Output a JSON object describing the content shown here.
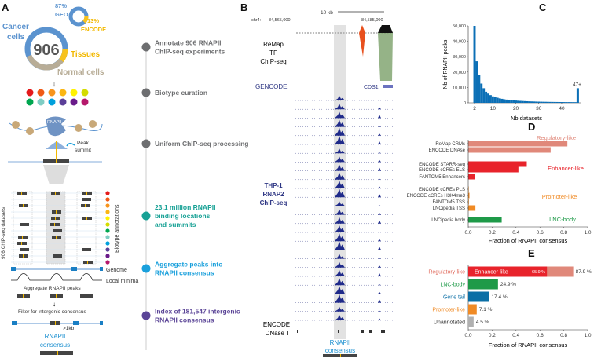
{
  "panels": {
    "a": "A",
    "b": "B",
    "c": "C",
    "d": "D",
    "e": "E"
  },
  "panel_a": {
    "donut_center": "906",
    "cancer": "Cancer",
    "cells": "cells",
    "tissues": "Tissues",
    "normal": "Normal cells",
    "geo_pct": "87%",
    "geo": "GEO",
    "encode_pct": "13%",
    "encode": "ENCODE",
    "rnapii": "RNAPII",
    "peak": "Peak",
    "summit": "summit",
    "datasets_label": "906 ChIP-seq datasets",
    "biotype_label": "Biotype annotations",
    "genome": "Genome",
    "local_minima": "Local minima",
    "aggregate": "Aggregate RNAPII peaks",
    "filter": "Filter for intergenic consensus",
    "gap": ">1kb",
    "consensus1": "RNAPII",
    "consensus2": "consensus",
    "biotype_colors": [
      "#e41a1c",
      "#f05a16",
      "#f7941d",
      "#fbb614",
      "#fff200",
      "#d4dc00",
      "#00a650",
      "#7fcdc4",
      "#00a0dc",
      "#5b3f98",
      "#6a1b8a",
      "#b5186b"
    ]
  },
  "timeline": [
    {
      "lines": [
        "Annotate 906 RNAPII",
        "ChIP-seq experiments"
      ],
      "color": "#6d6e70"
    },
    {
      "lines": [
        "Biotype curation"
      ],
      "color": "#6d6e70"
    },
    {
      "lines": [
        "Uniform ChIP-seq processing"
      ],
      "color": "#6d6e70"
    },
    {
      "lines": [
        "23.1 million RNAPII",
        "binding locations",
        "and summits"
      ],
      "color": "#17a195"
    },
    {
      "lines": [
        "Aggregate peaks into",
        "RNAPII consensus"
      ],
      "color": "#1aa0dc"
    },
    {
      "lines": [
        "Index of 181,547 intergenic",
        "RNAPII consensus"
      ],
      "color": "#5b4597"
    }
  ],
  "panel_b": {
    "scale": "10 kb",
    "chrom": "chr4:",
    "coord1": "84,565,000",
    "coord2": "84,585,000",
    "remap1": "ReMap",
    "remap2": "TF",
    "remap3": "ChIP-seq",
    "gencode": "GENCODE",
    "gene": "CDS1",
    "thp1_1": "THP-1",
    "thp1_2": "RNAP2",
    "thp1_3": "ChIP-seq",
    "dnase1": "ENCODE",
    "dnase2": "DNase I",
    "cons1": "RNAPII",
    "cons2": "consensus"
  },
  "chart_data": [
    {
      "id": "C",
      "type": "bar",
      "xlabel": "Nb datasets",
      "ylabel": "Nb of RNAPII peaks",
      "xticks": [
        2,
        10,
        20,
        30,
        40
      ],
      "yticks": [
        0,
        10000,
        20000,
        30000,
        40000,
        50000
      ],
      "ytick_labels": [
        "0",
        "10,000",
        "20,000",
        "30,000",
        "40,000",
        "50,000"
      ],
      "ylim": [
        0,
        50000
      ],
      "x": [
        2,
        3,
        4,
        5,
        6,
        7,
        8,
        9,
        10,
        11,
        12,
        13,
        14,
        15,
        16,
        17,
        18,
        19,
        20,
        21,
        22,
        23,
        24,
        25,
        26,
        27,
        28,
        29,
        30,
        31,
        32,
        33,
        34,
        35,
        36,
        37,
        38,
        39,
        40,
        41,
        42,
        43,
        44,
        45,
        46
      ],
      "values": [
        50000,
        27000,
        18000,
        12500,
        9500,
        7200,
        6000,
        5000,
        4200,
        3700,
        3300,
        2900,
        2600,
        2300,
        2100,
        1900,
        1750,
        1600,
        1480,
        1370,
        1270,
        1180,
        1100,
        1030,
        960,
        900,
        850,
        800,
        760,
        720,
        690,
        660,
        630,
        600,
        580,
        560,
        540,
        520,
        500,
        480,
        470,
        460,
        450,
        440,
        430
      ],
      "overflow": {
        "label": "47+",
        "value": 9500
      },
      "color": "#0b6fb6"
    },
    {
      "id": "D",
      "type": "bar",
      "orientation": "horizontal",
      "xlabel": "Fraction of RNAPII consensus",
      "xticks": [
        "0.0",
        "0.2",
        "0.4",
        "0.6",
        "0.8",
        "1.0"
      ],
      "xlim": [
        0,
        1
      ],
      "groups": [
        {
          "name": "Regulatory-like",
          "color": "#e0887a",
          "items": [
            {
              "label": "ReMap CRMs",
              "value": 0.83
            },
            {
              "label": "ENCODE DNAse",
              "value": 0.69
            }
          ]
        },
        {
          "name": "Enhancer-like",
          "color": "#e8232b",
          "items": [
            {
              "label": "ENCODE STARR-seq",
              "value": 0.49
            },
            {
              "label": "ENCODE cCREs ELS",
              "value": 0.42
            },
            {
              "label": "FANTOM5 Enhancers",
              "value": 0.055
            }
          ]
        },
        {
          "name": "Promoter-like",
          "color": "#f08a24",
          "items": [
            {
              "label": "ENCODE cCREs PLS",
              "value": 0.003
            },
            {
              "label": "ENCODE cCREs H3K4me3",
              "value": 0.01
            },
            {
              "label": "FANTOM5 TSS",
              "value": 0.005
            },
            {
              "label": "LNCipedia TSS",
              "value": 0.06
            }
          ]
        },
        {
          "name": "LNC-body",
          "color": "#1e9a48",
          "items": [
            {
              "label": "LNCipedia body",
              "value": 0.28
            }
          ]
        }
      ]
    },
    {
      "id": "E",
      "type": "bar",
      "orientation": "horizontal",
      "xlabel": "Fraction of RNAPII consensus",
      "xticks": [
        "0.0",
        "0.2",
        "0.4",
        "0.6",
        "0.8",
        "1.0"
      ],
      "xlim": [
        0,
        1
      ],
      "items": [
        {
          "label": "Regulatory-like",
          "value": 0.879,
          "value_label": "87.9 %",
          "color": "#e0887a",
          "label_color": "#e0685a",
          "inner": {
            "label": "Enhancer-like",
            "value": 0.659,
            "value_label": "65.9 %",
            "color": "#e8232b"
          }
        },
        {
          "label": "LNC-body",
          "value": 0.249,
          "value_label": "24.9 %",
          "color": "#1e9a48",
          "label_color": "#1e9a48"
        },
        {
          "label": "Gene tail",
          "value": 0.174,
          "value_label": "17.4 %",
          "color": "#0b6fa6",
          "label_color": "#0b6fa6"
        },
        {
          "label": "Promoter-like",
          "value": 0.071,
          "value_label": "7.1 %",
          "color": "#f08a24",
          "label_color": "#f08a24"
        },
        {
          "label": "Unannotated",
          "value": 0.045,
          "value_label": "4.5 %",
          "color": "#b0b0b0",
          "label_color": "#333333"
        }
      ]
    }
  ]
}
